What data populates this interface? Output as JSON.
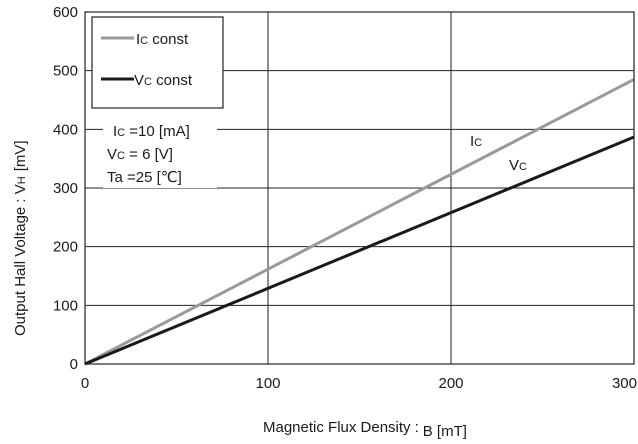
{
  "chart_data": {
    "type": "line",
    "xlabel_main": "Magnetic Flux Density",
    "xlabel_sep": ":",
    "xlabel_unit": "B [mT]",
    "ylabel_main": "Output Hall Voltage : V",
    "ylabel_sub": "H",
    "ylabel_unit": "[mV]",
    "xlim": [
      0,
      300
    ],
    "ylim": [
      0,
      600
    ],
    "xticks": [
      "0",
      "100",
      "200",
      "300"
    ],
    "yticks": [
      "0",
      "100",
      "200",
      "300",
      "400",
      "500",
      "600"
    ],
    "grid": true,
    "legend_placement": "top-left",
    "series": [
      {
        "key": "ic",
        "legend_main": "I",
        "legend_sub": "C",
        "legend_rest": " const",
        "label_main": "I",
        "label_sub": "C",
        "color": "#9a9a9a",
        "x": [
          0,
          300
        ],
        "y": [
          0,
          485
        ]
      },
      {
        "key": "vc",
        "legend_main": "V",
        "legend_sub": "C",
        "legend_rest": " const",
        "label_main": "V",
        "label_sub": "C",
        "color": "#1a1a1a",
        "x": [
          0,
          300
        ],
        "y": [
          0,
          387
        ]
      }
    ],
    "conditions": [
      {
        "main": "I",
        "sub": "C",
        "rest": " =10 [mA]"
      },
      {
        "main": "V",
        "sub": "C",
        "rest": " = 6  [V]"
      },
      {
        "main": "Ta",
        "sub": "",
        "rest": " =25 [℃]"
      }
    ]
  }
}
